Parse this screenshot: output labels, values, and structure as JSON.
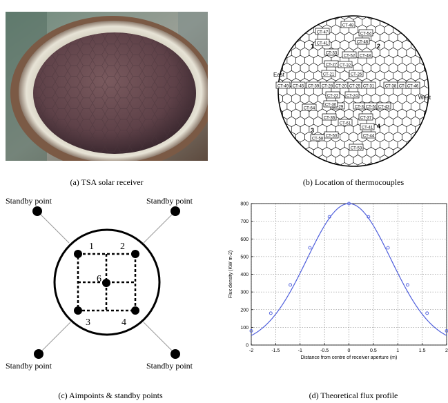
{
  "captions": {
    "a": "(a) TSA solar receiver",
    "b": "(b) Location of thermocouples",
    "c": "(c) Aimpoints & standby points",
    "d": "(d) Theoretical  flux profile"
  },
  "panel_b": {
    "compass": {
      "east": "East",
      "west": "West"
    },
    "quadrants": [
      "1",
      "2",
      "3",
      "4"
    ],
    "thermocouples": [
      "CT-48",
      "CT-47",
      "CT-54",
      "CT-41",
      "CT-46",
      "CT-33",
      "CT-52",
      "CT-48",
      "CT-27",
      "CT-32",
      "CT-21",
      "CT-26",
      "CT-49",
      "CT-45",
      "CT-39",
      "CT-28",
      "CT-20",
      "CT-25",
      "CT-31",
      "CT-38",
      "CT-43",
      "CT-46",
      "CT-22",
      "CT-24",
      "CT-29",
      "CT-34",
      "CT-30",
      "CT-51",
      "CT-64",
      "CT-36",
      "CT-61",
      "CT-37",
      "CT-41",
      "CT-43",
      "CT-44",
      "CT-58",
      "CT-50",
      "CT-53"
    ]
  },
  "panel_c": {
    "standby_label": "Standby point",
    "aimpoints": [
      "1",
      "2",
      "3",
      "4",
      "6"
    ]
  },
  "chart_data": {
    "type": "line",
    "title": "",
    "xlabel": "Distance from centre of receiver aperture (m)",
    "ylabel": "Flux density (KW m-2)",
    "xlim": [
      -2,
      2
    ],
    "ylim": [
      0,
      800
    ],
    "xticks": [
      "-2",
      "-1.5",
      "-1",
      "-0.5",
      "0",
      "0.5",
      "1",
      "1.5",
      "2"
    ],
    "yticks": [
      "0",
      "100",
      "200",
      "300",
      "400",
      "500",
      "600",
      "700",
      "800"
    ],
    "grid": true,
    "marker_x": [
      -2,
      -1.6,
      -1.2,
      -0.8,
      -0.4,
      0,
      0.4,
      0.8,
      1.2,
      1.6,
      2
    ],
    "marker_y": [
      80,
      180,
      340,
      550,
      725,
      800,
      725,
      550,
      340,
      180,
      80
    ],
    "curve_sigma": 0.86,
    "curve_peak": 800,
    "colors": {
      "line": "#4f5fdc"
    }
  }
}
